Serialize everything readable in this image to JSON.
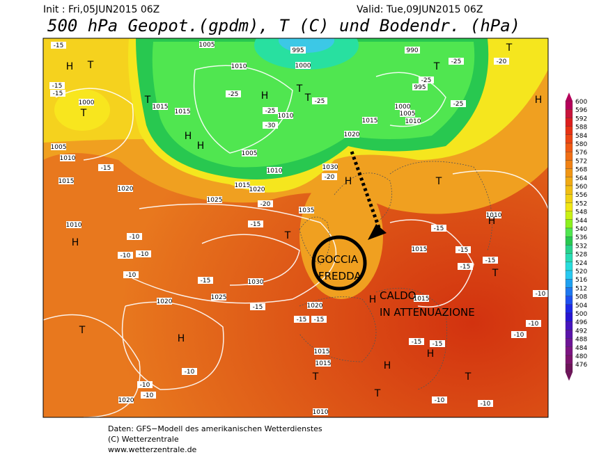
{
  "header": {
    "init": "Init : Fri,05JUN2015 06Z",
    "valid": "Valid: Tue,09JUN2015 06Z",
    "title": "500 hPa Geopot.(gpdm), T (C) und Bodendr. (hPa)"
  },
  "annotations": {
    "cold_1": "GOCCIA",
    "cold_2": "FREDDA",
    "warm_1": "CALDO",
    "warm_2": "IN ATTENUAZIONE"
  },
  "legend": {
    "values": [
      600,
      596,
      592,
      588,
      584,
      580,
      576,
      572,
      568,
      564,
      560,
      556,
      552,
      548,
      544,
      540,
      536,
      532,
      528,
      524,
      520,
      516,
      512,
      508,
      504,
      500,
      496,
      492,
      488,
      484,
      480,
      476
    ]
  },
  "map_labels": [
    "1005",
    "995",
    "1010",
    "1000",
    "990",
    "995",
    "1000",
    "1005",
    "1010",
    "1015",
    "1020",
    "1015",
    "1015",
    "1000",
    "1005",
    "1010",
    "1015",
    "1020",
    "1025",
    "1035",
    "1030",
    "1010",
    "1030",
    "1025",
    "1020",
    "1020",
    "1015",
    "1015",
    "1010",
    "1015",
    "1015",
    "1010",
    "1020",
    "1010",
    "1005",
    "1010",
    "1015",
    "1020",
    "-25",
    "-25",
    "-30",
    "-25",
    "-25",
    "-25",
    "-25",
    "-20",
    "-15",
    "-20",
    "-15",
    "-15",
    "-15",
    "-15",
    "-15",
    "-15",
    "-15",
    "-15",
    "-15",
    "-15",
    "-10",
    "-10",
    "-10",
    "-10",
    "-10",
    "-10",
    "-10",
    "-10",
    "-10",
    "-10",
    "-10",
    "-10",
    "-15",
    "-15",
    "-15",
    "-15",
    "-20",
    "T",
    "T",
    "T",
    "H",
    "H",
    "H",
    "T",
    "T",
    "T",
    "T",
    "H",
    "H",
    "T",
    "H",
    "T",
    "H",
    "T",
    "H",
    "T",
    "H",
    "T",
    "H",
    "T",
    "H",
    "T",
    "H"
  ],
  "footer": {
    "line1": "Daten: GFS−Modell des amerikanischen Wetterdienstes",
    "line2": "(C) Wetterzentrale",
    "line3": "www.wetterzentrale.de"
  }
}
